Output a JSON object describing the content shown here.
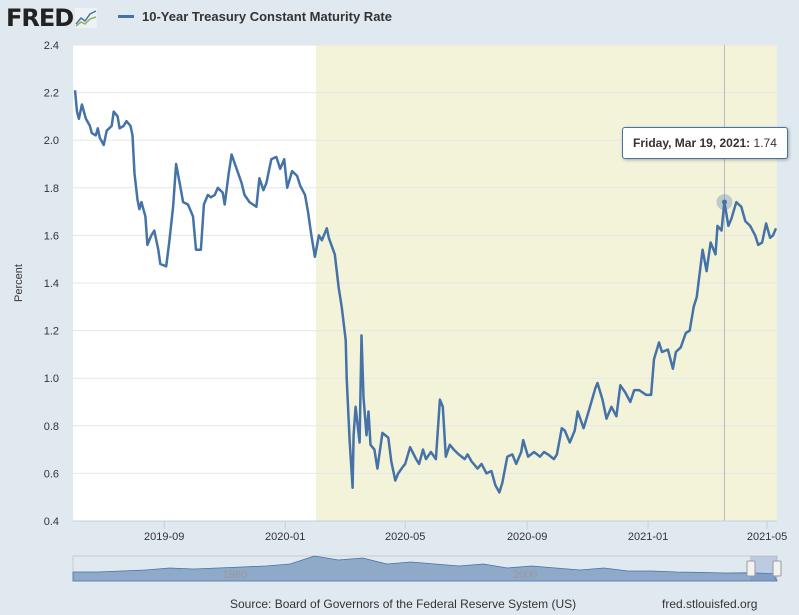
{
  "header": {
    "logo": "FRED",
    "series_title": "10-Year Treasury Constant Maturity Rate"
  },
  "tooltip": {
    "date": "Friday, Mar 19, 2021:",
    "value": "1.74"
  },
  "footer": {
    "source": "Source: Board of Governors of the Federal Reserve System (US)",
    "site": "fred.stlouisfed.org"
  },
  "navigator": {
    "labels": [
      "1980",
      "2000"
    ]
  },
  "colors": {
    "line": "#4572a7",
    "recession": "#f3f3da",
    "background": "#e1e9f0"
  },
  "chart_data": {
    "type": "line",
    "title": "10-Year Treasury Constant Maturity Rate",
    "ylabel": "Percent",
    "xlabel": "",
    "ylim": [
      0.4,
      2.4
    ],
    "xlim": [
      "2019-06-01",
      "2021-05-11"
    ],
    "yticks": [
      "0.4",
      "0.6",
      "0.8",
      "1.0",
      "1.2",
      "1.4",
      "1.6",
      "1.8",
      "2.0",
      "2.2",
      "2.4"
    ],
    "xticks": [
      {
        "label": "2019-09",
        "date": "2019-09-01"
      },
      {
        "label": "2020-01",
        "date": "2020-01-01"
      },
      {
        "label": "2020-05",
        "date": "2020-05-01"
      },
      {
        "label": "2020-09",
        "date": "2020-09-01"
      },
      {
        "label": "2021-01",
        "date": "2021-01-01"
      },
      {
        "label": "2021-05",
        "date": "2021-05-01"
      }
    ],
    "recession": [
      "2020-02-01",
      "2021-05-11"
    ],
    "highlight": {
      "date": "2021-03-19",
      "value": 1.74
    },
    "series": [
      {
        "name": "10-Year Treasury Constant Maturity Rate",
        "points": [
          [
            "2019-06-03",
            2.21
          ],
          [
            "2019-06-05",
            2.12
          ],
          [
            "2019-06-07",
            2.09
          ],
          [
            "2019-06-10",
            2.15
          ],
          [
            "2019-06-12",
            2.12
          ],
          [
            "2019-06-14",
            2.09
          ],
          [
            "2019-06-18",
            2.06
          ],
          [
            "2019-06-20",
            2.03
          ],
          [
            "2019-06-24",
            2.02
          ],
          [
            "2019-06-26",
            2.05
          ],
          [
            "2019-06-28",
            2.01
          ],
          [
            "2019-07-02",
            1.98
          ],
          [
            "2019-07-05",
            2.04
          ],
          [
            "2019-07-10",
            2.06
          ],
          [
            "2019-07-12",
            2.12
          ],
          [
            "2019-07-16",
            2.1
          ],
          [
            "2019-07-18",
            2.05
          ],
          [
            "2019-07-22",
            2.06
          ],
          [
            "2019-07-25",
            2.08
          ],
          [
            "2019-07-29",
            2.06
          ],
          [
            "2019-07-31",
            2.02
          ],
          [
            "2019-08-02",
            1.86
          ],
          [
            "2019-08-05",
            1.75
          ],
          [
            "2019-08-07",
            1.71
          ],
          [
            "2019-08-09",
            1.74
          ],
          [
            "2019-08-13",
            1.68
          ],
          [
            "2019-08-15",
            1.56
          ],
          [
            "2019-08-19",
            1.6
          ],
          [
            "2019-08-22",
            1.62
          ],
          [
            "2019-08-26",
            1.54
          ],
          [
            "2019-08-28",
            1.48
          ],
          [
            "2019-09-03",
            1.47
          ],
          [
            "2019-09-06",
            1.57
          ],
          [
            "2019-09-10",
            1.72
          ],
          [
            "2019-09-13",
            1.9
          ],
          [
            "2019-09-17",
            1.81
          ],
          [
            "2019-09-20",
            1.74
          ],
          [
            "2019-09-25",
            1.73
          ],
          [
            "2019-09-30",
            1.68
          ],
          [
            "2019-10-03",
            1.54
          ],
          [
            "2019-10-08",
            1.54
          ],
          [
            "2019-10-11",
            1.73
          ],
          [
            "2019-10-15",
            1.77
          ],
          [
            "2019-10-18",
            1.76
          ],
          [
            "2019-10-22",
            1.77
          ],
          [
            "2019-10-25",
            1.8
          ],
          [
            "2019-10-30",
            1.78
          ],
          [
            "2019-11-01",
            1.73
          ],
          [
            "2019-11-05",
            1.86
          ],
          [
            "2019-11-08",
            1.94
          ],
          [
            "2019-11-13",
            1.88
          ],
          [
            "2019-11-18",
            1.82
          ],
          [
            "2019-11-21",
            1.77
          ],
          [
            "2019-11-26",
            1.74
          ],
          [
            "2019-12-03",
            1.72
          ],
          [
            "2019-12-06",
            1.84
          ],
          [
            "2019-12-10",
            1.79
          ],
          [
            "2019-12-13",
            1.82
          ],
          [
            "2019-12-18",
            1.92
          ],
          [
            "2019-12-23",
            1.93
          ],
          [
            "2019-12-27",
            1.88
          ],
          [
            "2019-12-31",
            1.92
          ],
          [
            "2020-01-03",
            1.8
          ],
          [
            "2020-01-08",
            1.87
          ],
          [
            "2020-01-13",
            1.85
          ],
          [
            "2020-01-16",
            1.81
          ],
          [
            "2020-01-21",
            1.77
          ],
          [
            "2020-01-24",
            1.7
          ],
          [
            "2020-01-27",
            1.61
          ],
          [
            "2020-01-31",
            1.51
          ],
          [
            "2020-02-04",
            1.6
          ],
          [
            "2020-02-07",
            1.58
          ],
          [
            "2020-02-12",
            1.63
          ],
          [
            "2020-02-14",
            1.59
          ],
          [
            "2020-02-20",
            1.52
          ],
          [
            "2020-02-24",
            1.38
          ],
          [
            "2020-02-27",
            1.3
          ],
          [
            "2020-03-02",
            1.16
          ],
          [
            "2020-03-03",
            1.0
          ],
          [
            "2020-03-04",
            0.91
          ],
          [
            "2020-03-06",
            0.74
          ],
          [
            "2020-03-09",
            0.54
          ],
          [
            "2020-03-10",
            0.76
          ],
          [
            "2020-03-12",
            0.88
          ],
          [
            "2020-03-16",
            0.73
          ],
          [
            "2020-03-18",
            1.18
          ],
          [
            "2020-03-20",
            0.92
          ],
          [
            "2020-03-23",
            0.76
          ],
          [
            "2020-03-25",
            0.86
          ],
          [
            "2020-03-27",
            0.72
          ],
          [
            "2020-03-31",
            0.7
          ],
          [
            "2020-04-03",
            0.62
          ],
          [
            "2020-04-08",
            0.77
          ],
          [
            "2020-04-14",
            0.75
          ],
          [
            "2020-04-17",
            0.65
          ],
          [
            "2020-04-21",
            0.57
          ],
          [
            "2020-04-24",
            0.6
          ],
          [
            "2020-04-29",
            0.63
          ],
          [
            "2020-05-01",
            0.64
          ],
          [
            "2020-05-06",
            0.71
          ],
          [
            "2020-05-12",
            0.66
          ],
          [
            "2020-05-15",
            0.64
          ],
          [
            "2020-05-19",
            0.7
          ],
          [
            "2020-05-22",
            0.66
          ],
          [
            "2020-05-27",
            0.69
          ],
          [
            "2020-06-01",
            0.66
          ],
          [
            "2020-06-05",
            0.91
          ],
          [
            "2020-06-08",
            0.88
          ],
          [
            "2020-06-11",
            0.67
          ],
          [
            "2020-06-15",
            0.72
          ],
          [
            "2020-06-19",
            0.7
          ],
          [
            "2020-06-24",
            0.68
          ],
          [
            "2020-06-30",
            0.66
          ],
          [
            "2020-07-03",
            0.68
          ],
          [
            "2020-07-07",
            0.65
          ],
          [
            "2020-07-13",
            0.62
          ],
          [
            "2020-07-17",
            0.64
          ],
          [
            "2020-07-22",
            0.6
          ],
          [
            "2020-07-27",
            0.61
          ],
          [
            "2020-07-31",
            0.55
          ],
          [
            "2020-08-04",
            0.52
          ],
          [
            "2020-08-07",
            0.56
          ],
          [
            "2020-08-12",
            0.67
          ],
          [
            "2020-08-17",
            0.68
          ],
          [
            "2020-08-21",
            0.64
          ],
          [
            "2020-08-26",
            0.69
          ],
          [
            "2020-08-28",
            0.74
          ],
          [
            "2020-09-02",
            0.67
          ],
          [
            "2020-09-08",
            0.69
          ],
          [
            "2020-09-14",
            0.67
          ],
          [
            "2020-09-18",
            0.69
          ],
          [
            "2020-09-22",
            0.68
          ],
          [
            "2020-09-28",
            0.66
          ],
          [
            "2020-10-01",
            0.68
          ],
          [
            "2020-10-06",
            0.79
          ],
          [
            "2020-10-09",
            0.78
          ],
          [
            "2020-10-14",
            0.73
          ],
          [
            "2020-10-19",
            0.78
          ],
          [
            "2020-10-22",
            0.86
          ],
          [
            "2020-10-28",
            0.79
          ],
          [
            "2020-11-02",
            0.86
          ],
          [
            "2020-11-09",
            0.96
          ],
          [
            "2020-11-11",
            0.98
          ],
          [
            "2020-11-16",
            0.91
          ],
          [
            "2020-11-20",
            0.83
          ],
          [
            "2020-11-25",
            0.88
          ],
          [
            "2020-11-30",
            0.84
          ],
          [
            "2020-12-04",
            0.97
          ],
          [
            "2020-12-09",
            0.94
          ],
          [
            "2020-12-14",
            0.9
          ],
          [
            "2020-12-18",
            0.95
          ],
          [
            "2020-12-23",
            0.95
          ],
          [
            "2020-12-30",
            0.93
          ],
          [
            "2021-01-04",
            0.93
          ],
          [
            "2021-01-07",
            1.08
          ],
          [
            "2021-01-12",
            1.15
          ],
          [
            "2021-01-15",
            1.11
          ],
          [
            "2021-01-21",
            1.12
          ],
          [
            "2021-01-26",
            1.04
          ],
          [
            "2021-01-29",
            1.11
          ],
          [
            "2021-02-03",
            1.13
          ],
          [
            "2021-02-08",
            1.19
          ],
          [
            "2021-02-12",
            1.2
          ],
          [
            "2021-02-16",
            1.3
          ],
          [
            "2021-02-19",
            1.34
          ],
          [
            "2021-02-25",
            1.54
          ],
          [
            "2021-03-01",
            1.45
          ],
          [
            "2021-03-05",
            1.57
          ],
          [
            "2021-03-10",
            1.52
          ],
          [
            "2021-03-12",
            1.64
          ],
          [
            "2021-03-16",
            1.62
          ],
          [
            "2021-03-19",
            1.74
          ],
          [
            "2021-03-23",
            1.64
          ],
          [
            "2021-03-26",
            1.67
          ],
          [
            "2021-03-31",
            1.74
          ],
          [
            "2021-04-05",
            1.72
          ],
          [
            "2021-04-09",
            1.66
          ],
          [
            "2021-04-14",
            1.64
          ],
          [
            "2021-04-19",
            1.6
          ],
          [
            "2021-04-22",
            1.56
          ],
          [
            "2021-04-26",
            1.57
          ],
          [
            "2021-04-30",
            1.65
          ],
          [
            "2021-05-04",
            1.59
          ],
          [
            "2021-05-07",
            1.6
          ],
          [
            "2021-05-10",
            1.63
          ]
        ]
      }
    ]
  }
}
